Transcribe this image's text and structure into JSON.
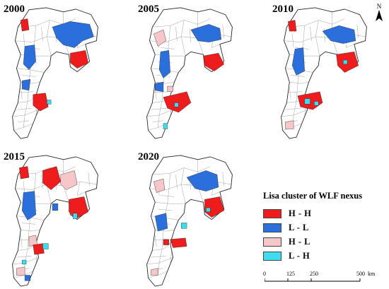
{
  "panels": [
    {
      "year": "2000"
    },
    {
      "year": "2005"
    },
    {
      "year": "2010"
    },
    {
      "year": "2015"
    },
    {
      "year": "2020"
    }
  ],
  "legend": {
    "title": "Lisa cluster of WLF nexus",
    "items": [
      {
        "label": "H - H",
        "color": "#ee1c1c"
      },
      {
        "label": "L - L",
        "color": "#2a6fdb"
      },
      {
        "label": "H - L",
        "color": "#f6c6c8"
      },
      {
        "label": "L - H",
        "color": "#3fdcef"
      }
    ]
  },
  "north_arrow": {
    "label": "N"
  },
  "scale": {
    "ticks": [
      "0",
      "125",
      "250",
      "500"
    ],
    "unit": "km"
  }
}
